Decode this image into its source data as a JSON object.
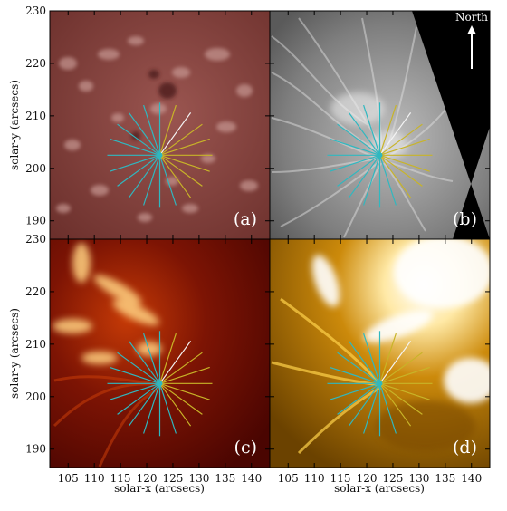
{
  "figure": {
    "panels": [
      {
        "id": "a",
        "label": "(a)",
        "style": "rust",
        "show_ylabel": true,
        "show_xlabel": false,
        "show_compass": false
      },
      {
        "id": "b",
        "label": "(b)",
        "style": "gray",
        "show_ylabel": false,
        "show_xlabel": false,
        "show_compass": true
      },
      {
        "id": "c",
        "label": "(c)",
        "style": "fire",
        "show_ylabel": true,
        "show_xlabel": true,
        "show_compass": false
      },
      {
        "id": "d",
        "label": "(d)",
        "style": "gold",
        "show_ylabel": false,
        "show_xlabel": true,
        "show_compass": false
      }
    ],
    "xlabel": "solar-x (arcsecs)",
    "ylabel": "solar-y (arcsecs)",
    "x_ticks": [
      "105",
      "110",
      "115",
      "120",
      "125",
      "130",
      "135",
      "140"
    ],
    "y_ticks": [
      "190",
      "200",
      "210",
      "220",
      "230"
    ],
    "compass": {
      "label": "North",
      "icon": "north-arrow-icon"
    },
    "colors": {
      "rust_bg": "#7a3b36",
      "gray_bg": "#8a8a8a",
      "fire_bg": "#5a0a02",
      "gold_bg": "#8b5a00",
      "ray_cyan": "#2fb8c0",
      "ray_yellow": "#c8b428",
      "ray_white": "#f4f4f4",
      "label_white": "#ffffff"
    }
  }
}
